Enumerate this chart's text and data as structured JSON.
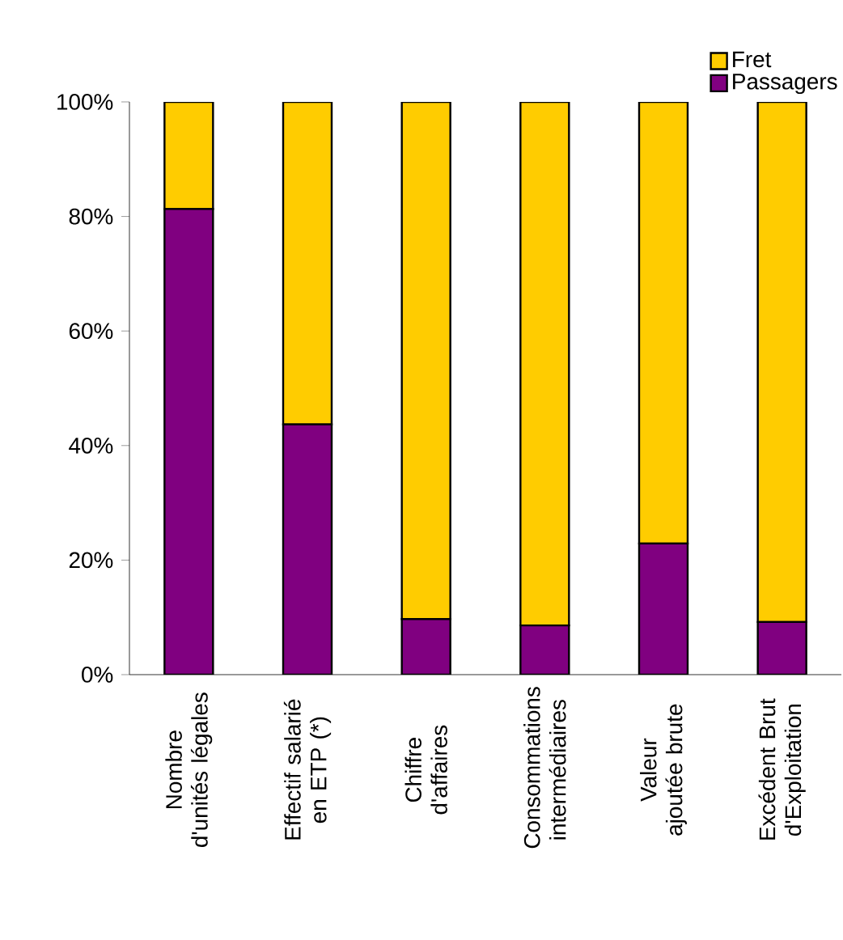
{
  "chart_data": {
    "type": "bar",
    "stacked": true,
    "categories": [
      "Nombre d'unités légales",
      "Effectif salarié en ETP (*)",
      "Chiffre d'affaires",
      "Consommations intermédiaires",
      "Valeur ajoutée brute",
      "Excédent Brut d'Exploitation"
    ],
    "series": [
      {
        "name": "Passagers",
        "color": "#800080",
        "values": [
          81.3,
          43.7,
          9.7,
          8.6,
          22.9,
          9.2
        ]
      },
      {
        "name": "Fret",
        "color": "#ffcc00",
        "values": [
          18.7,
          56.3,
          90.3,
          91.4,
          77.1,
          90.8
        ]
      }
    ],
    "ylim": [
      0,
      100
    ],
    "yticks": [
      {
        "value": 0,
        "label": "0%"
      },
      {
        "value": 20,
        "label": "20%"
      },
      {
        "value": 40,
        "label": "40%"
      },
      {
        "value": 60,
        "label": "60%"
      },
      {
        "value": 80,
        "label": "80%"
      },
      {
        "value": 100,
        "label": "100%"
      }
    ],
    "grid": false,
    "legend": "top right"
  }
}
